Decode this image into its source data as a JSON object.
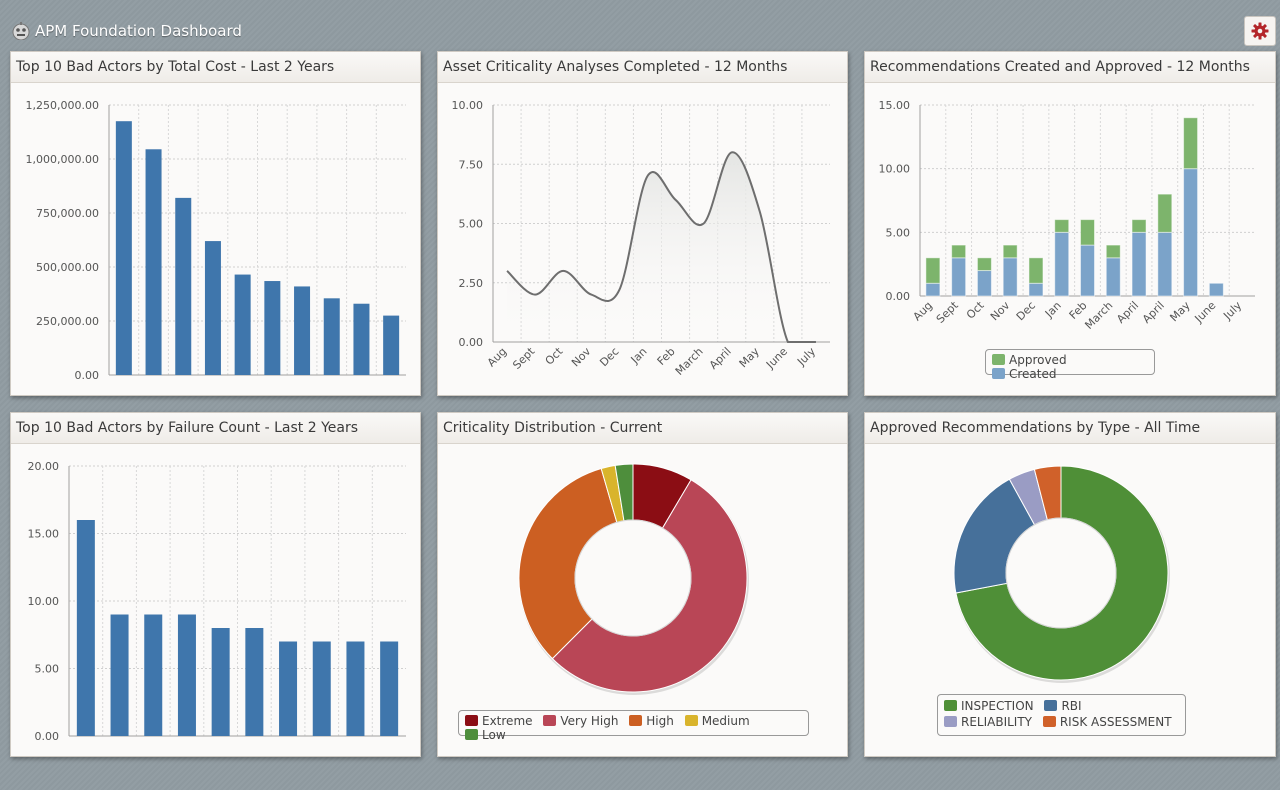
{
  "header": {
    "title": "APM Foundation Dashboard",
    "settings_icon": "gear-icon"
  },
  "panels": {
    "cost": {
      "title": "Top 10 Bad Actors by Total Cost - Last 2 Years"
    },
    "analyses": {
      "title": "Asset Criticality Analyses Completed - 12 Months"
    },
    "recs": {
      "title": "Recommendations Created and Approved - 12 Months"
    },
    "failures": {
      "title": "Top 10 Bad Actors by Failure Count - Last 2 Years"
    },
    "crit": {
      "title": "Criticality Distribution - Current"
    },
    "types": {
      "title": "Approved Recommendations by Type - All Time"
    }
  },
  "legends": {
    "recs": [
      {
        "label": "Approved",
        "color": "#7db46c"
      },
      {
        "label": "Created",
        "color": "#7ba3c9"
      }
    ],
    "crit": [
      {
        "label": "Extreme",
        "color": "#8b0d14"
      },
      {
        "label": "Very High",
        "color": "#b94656"
      },
      {
        "label": "High",
        "color": "#cc5f22"
      },
      {
        "label": "Medium",
        "color": "#d9b42c"
      },
      {
        "label": "Low",
        "color": "#4e8e3c"
      }
    ],
    "types": [
      {
        "label": "INSPECTION",
        "color": "#4f8f37"
      },
      {
        "label": "RBI",
        "color": "#46709a"
      },
      {
        "label": "RELIABILITY",
        "color": "#9a9cc4"
      },
      {
        "label": "RISK ASSESSMENT",
        "color": "#d0612a"
      }
    ]
  },
  "chart_data": [
    {
      "id": "cost",
      "type": "bar",
      "categories": [
        "",
        "",
        "",
        "",
        "",
        "",
        "",
        "",
        "",
        ""
      ],
      "values": [
        1175000,
        1045000,
        820000,
        620000,
        465000,
        435000,
        410000,
        355000,
        330000,
        275000
      ],
      "ylim": [
        0,
        1250000
      ],
      "yticks": [
        "0.00",
        "250,000.00",
        "500,000.00",
        "750,000.00",
        "1,000,000.00",
        "1,250,000.00"
      ],
      "color": "#3f76ac",
      "grid": true
    },
    {
      "id": "analyses",
      "type": "area",
      "categories": [
        "Aug",
        "Sept",
        "Oct",
        "Nov",
        "Dec",
        "Jan",
        "Feb",
        "March",
        "April",
        "May",
        "June",
        "July"
      ],
      "values": [
        3,
        2,
        3,
        2,
        2.2,
        7,
        6,
        5,
        8,
        5.5,
        0,
        0
      ],
      "ylim": [
        0,
        10
      ],
      "yticks": [
        "0.00",
        "2.50",
        "5.00",
        "7.50",
        "10.00"
      ],
      "grid": true
    },
    {
      "id": "recs",
      "type": "bar",
      "categories": [
        "Aug",
        "Sept",
        "Oct",
        "Nov",
        "Dec",
        "Jan",
        "Feb",
        "March",
        "April",
        "April",
        "May",
        "June",
        "July"
      ],
      "series": [
        {
          "name": "Created",
          "values": [
            1,
            3,
            2,
            3,
            1,
            5,
            4,
            3,
            5,
            5,
            10,
            1,
            0
          ],
          "color": "#7ba3c9"
        },
        {
          "name": "Approved",
          "values": [
            2,
            1,
            1,
            1,
            2,
            1,
            2,
            1,
            1,
            3,
            4,
            0,
            0
          ],
          "color": "#7db46c"
        }
      ],
      "stacked": true,
      "ylim": [
        0,
        15
      ],
      "yticks": [
        "0.00",
        "5.00",
        "10.00",
        "15.00"
      ],
      "grid": true
    },
    {
      "id": "failures",
      "type": "bar",
      "categories": [
        "",
        "",
        "",
        "",
        "",
        "",
        "",
        "",
        "",
        ""
      ],
      "values": [
        16,
        9,
        9,
        9,
        8,
        8,
        7,
        7,
        7,
        7
      ],
      "ylim": [
        0,
        20
      ],
      "yticks": [
        "0.00",
        "5.00",
        "10.00",
        "15.00",
        "20.00"
      ],
      "color": "#3f76ac",
      "grid": true
    },
    {
      "id": "crit",
      "type": "pie",
      "categories": [
        "Extreme",
        "Very High",
        "High",
        "Medium",
        "Low"
      ],
      "values": [
        8.5,
        54,
        33,
        2,
        2.5
      ]
    },
    {
      "id": "types",
      "type": "pie",
      "categories": [
        "INSPECTION",
        "RBI",
        "RELIABILITY",
        "RISK ASSESSMENT"
      ],
      "values": [
        72,
        20,
        4,
        4
      ]
    }
  ]
}
